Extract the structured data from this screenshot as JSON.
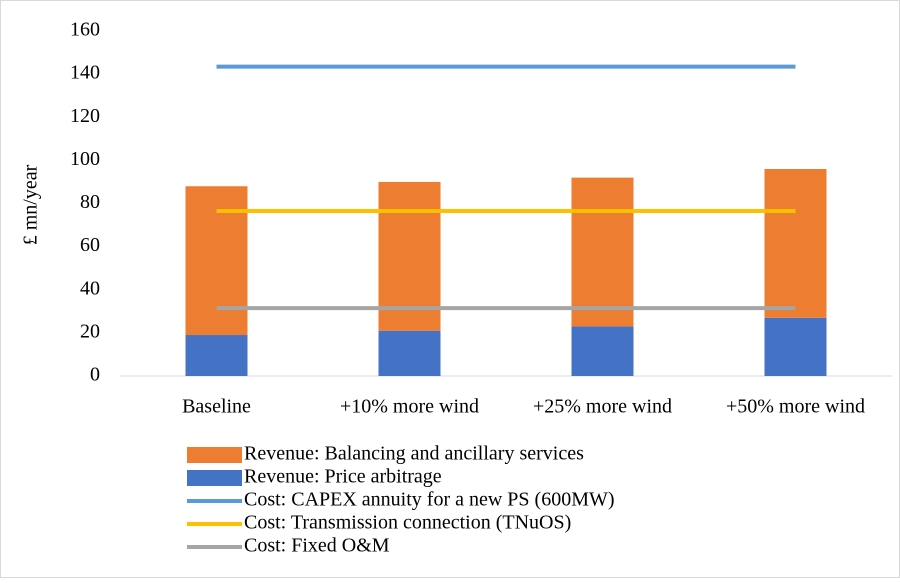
{
  "chart_data": {
    "type": "bar",
    "y_label": "£ mn/year",
    "categories": [
      "Baseline",
      "+10% more wind",
      "+25% more wind",
      "+50% more wind"
    ],
    "series": [
      {
        "name": "Revenue: Balancing and ancillary services",
        "type": "bar",
        "color": "#ED7D31",
        "values": [
          69,
          69,
          69,
          69
        ]
      },
      {
        "name": "Revenue: Price arbitrage",
        "type": "bar",
        "color": "#4472C4",
        "values": [
          19,
          21,
          23,
          27
        ]
      },
      {
        "name": "Cost: CAPEX annuity for a new PS (600MW)",
        "type": "line",
        "color": "#5B9BD5",
        "values": [
          143.5,
          143.5,
          143.5,
          143.5
        ]
      },
      {
        "name": "Cost: Transmission connection (TNuOS)",
        "type": "line",
        "color": "#FFC000",
        "values": [
          76.5,
          76.5,
          76.5,
          76.5
        ]
      },
      {
        "name": "Cost: Fixed O&M",
        "type": "line",
        "color": "#A5A5A5",
        "values": [
          31.5,
          31.5,
          31.5,
          31.5
        ]
      }
    ],
    "ylim": [
      0,
      160
    ],
    "yticks": [
      0,
      20,
      40,
      60,
      80,
      100,
      120,
      140,
      160
    ],
    "grid": false
  }
}
